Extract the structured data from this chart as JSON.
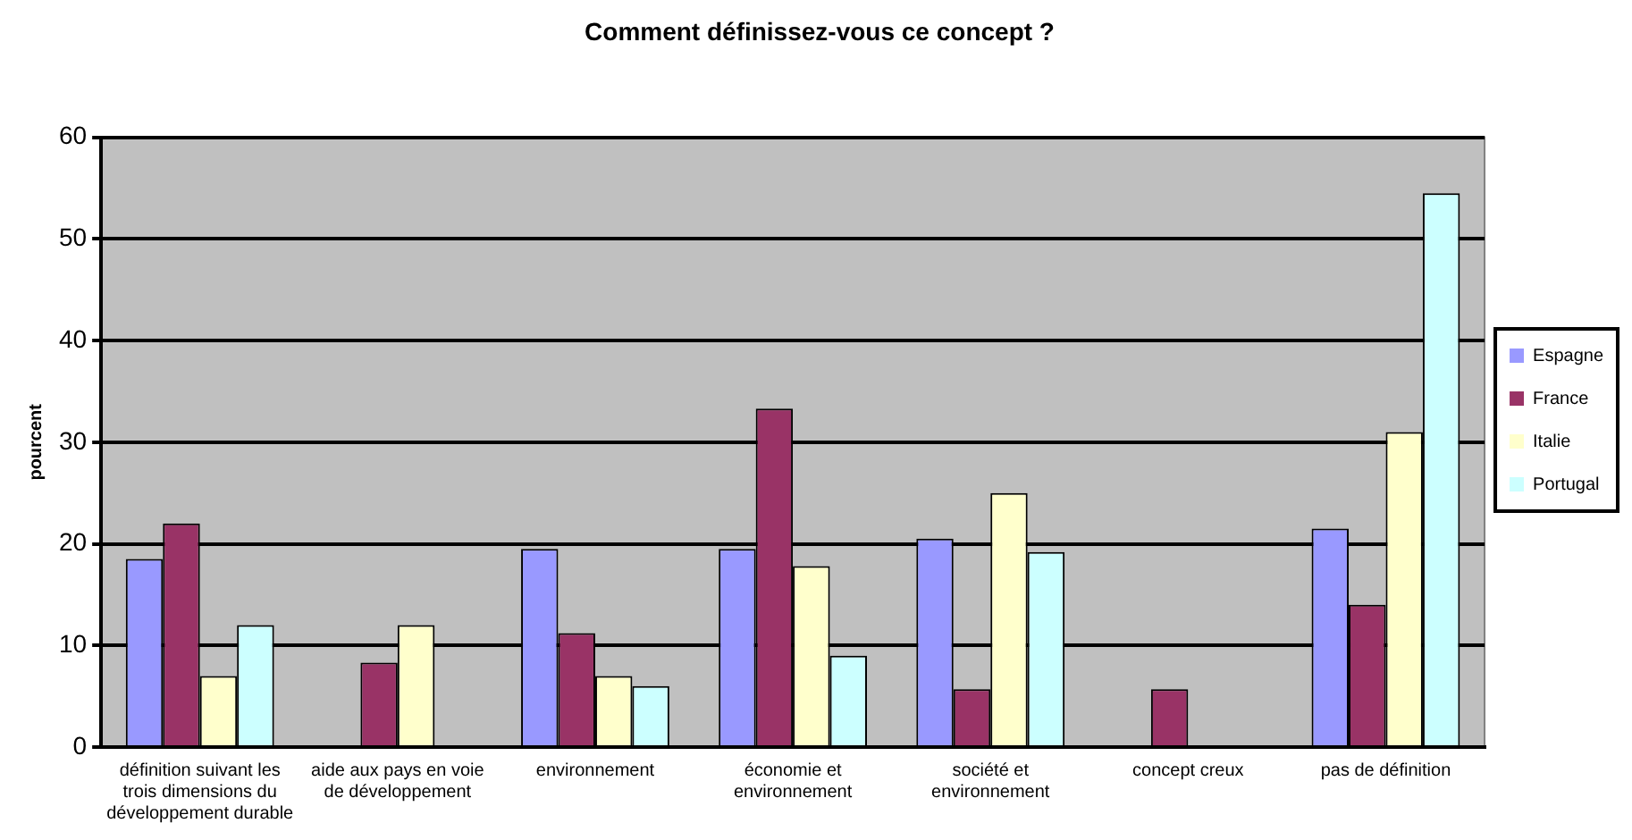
{
  "chart_data": {
    "type": "bar",
    "title": "Comment définissez-vous ce concept ?",
    "ylabel": "pourcent",
    "categories": [
      "définition suivant les trois dimensions du développement durable",
      "aide aux pays en voie de développement",
      "environnement",
      "économie et environnement",
      "société et environnement",
      "concept creux",
      "pas de définition"
    ],
    "series": [
      {
        "name": "Espagne",
        "color": "#9999ff",
        "values": [
          18.5,
          0,
          19.5,
          19.5,
          20.5,
          0,
          21.5
        ]
      },
      {
        "name": "France",
        "color": "#993366",
        "values": [
          22,
          8.3,
          11.2,
          33.3,
          5.7,
          5.7,
          14
        ]
      },
      {
        "name": "Italie",
        "color": "#ffffcc",
        "values": [
          7,
          12,
          7,
          17.8,
          25,
          0,
          31
        ]
      },
      {
        "name": "Portugal",
        "color": "#ccffff",
        "values": [
          12,
          0,
          6,
          9,
          19.2,
          0,
          54.5
        ]
      }
    ],
    "ylim": [
      0,
      60
    ],
    "yticks": [
      0,
      10,
      20,
      30,
      40,
      50,
      60
    ],
    "grid": "y",
    "legend": "right"
  }
}
